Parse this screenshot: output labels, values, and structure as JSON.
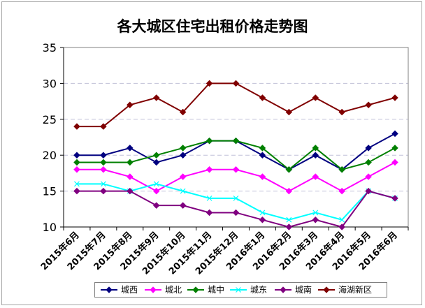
{
  "chart_data": {
    "type": "line",
    "title": "各大城区住宅出租价格走势图",
    "categories": [
      "2015年6月",
      "2015年7月",
      "2015年8月",
      "2015年9月",
      "2015年10月",
      "2015年11月",
      "2015年12月",
      "2016年1月",
      "2016年2月",
      "2016年3月",
      "2016年4月",
      "2016年5月",
      "2016年6月"
    ],
    "ylim": [
      10,
      35
    ],
    "yticks": [
      10,
      15,
      20,
      25,
      30,
      35
    ],
    "grid": "horizontal dashed",
    "legend_position": "bottom",
    "series": [
      {
        "name": "城西",
        "color": "#000080",
        "marker": "diamond",
        "values": [
          20,
          20,
          21,
          19,
          20,
          22,
          22,
          20,
          18,
          20,
          18,
          21,
          23
        ]
      },
      {
        "name": "城北",
        "color": "#ff00ff",
        "marker": "diamond",
        "values": [
          18,
          18,
          17,
          15,
          17,
          18,
          18,
          17,
          15,
          17,
          15,
          17,
          19
        ]
      },
      {
        "name": "城中",
        "color": "#008000",
        "marker": "diamond",
        "values": [
          19,
          19,
          19,
          20,
          21,
          22,
          22,
          21,
          18,
          21,
          18,
          19,
          21
        ]
      },
      {
        "name": "城东",
        "color": "#00ffff",
        "marker": "x",
        "values": [
          16,
          16,
          15,
          16,
          15,
          14,
          14,
          12,
          11,
          12,
          11,
          15,
          14
        ]
      },
      {
        "name": "城南",
        "color": "#800080",
        "marker": "diamond",
        "values": [
          15,
          15,
          15,
          13,
          13,
          12,
          12,
          11,
          10,
          11,
          10,
          15,
          14
        ]
      },
      {
        "name": "海湖新区",
        "color": "#800000",
        "marker": "diamond",
        "values": [
          24,
          24,
          27,
          28,
          26,
          30,
          30,
          28,
          26,
          28,
          26,
          27,
          28
        ]
      }
    ]
  }
}
